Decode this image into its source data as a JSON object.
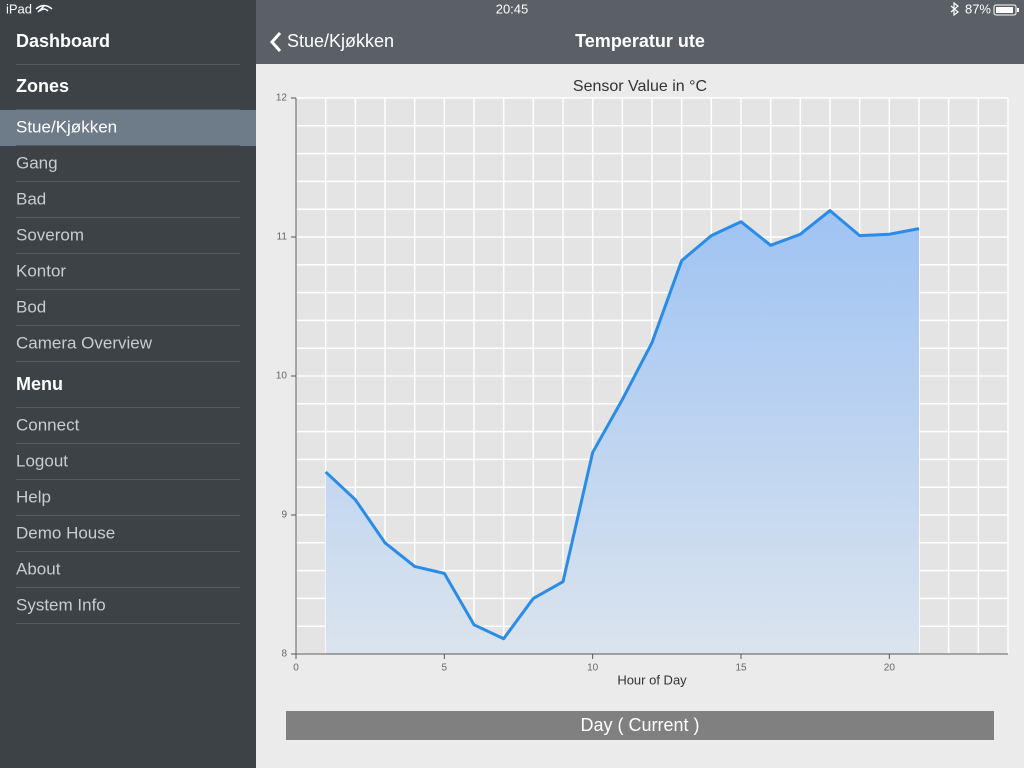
{
  "status_bar": {
    "device": "iPad",
    "time": "20:45",
    "battery": "87%"
  },
  "nav_bar": {
    "back": "Stue/Kjøkken",
    "title": "Temperatur ute"
  },
  "sidebar": {
    "top": "Dashboard",
    "sections": [
      {
        "title": "Zones",
        "selected": 0,
        "items": [
          "Stue/Kjøkken",
          "Gang",
          "Bad",
          "Soverom",
          "Kontor",
          "Bod",
          "Camera Overview"
        ]
      },
      {
        "title": "Menu",
        "items": [
          "Connect",
          "Logout",
          "Help",
          "Demo House",
          "About",
          "System Info"
        ]
      }
    ]
  },
  "chart_data": {
    "type": "area",
    "title": "Sensor Value in °C",
    "xlabel": "Hour of Day",
    "x": [
      1,
      2,
      3,
      4,
      5,
      6,
      7,
      8,
      9,
      10,
      11,
      12,
      13,
      14,
      15,
      16,
      17,
      18,
      19,
      20,
      21
    ],
    "values": [
      9.31,
      9.11,
      8.8,
      8.63,
      8.58,
      8.21,
      8.11,
      8.4,
      8.52,
      9.45,
      9.83,
      10.24,
      10.83,
      11.01,
      11.11,
      10.94,
      11.02,
      11.19,
      11.01,
      11.02,
      11.06
    ],
    "color": "#2a8ce6",
    "xlim": [
      0,
      24
    ],
    "ylim": [
      8,
      12
    ],
    "xticks": [
      0,
      5,
      10,
      15,
      20
    ],
    "yticks": [
      8,
      9,
      10,
      11,
      12
    ],
    "xgrid": [
      0,
      1,
      2,
      3,
      4,
      5,
      6,
      7,
      8,
      9,
      10,
      11,
      12,
      13,
      14,
      15,
      16,
      17,
      18,
      19,
      20,
      21,
      22,
      23,
      24
    ],
    "ygrid": [
      8,
      8.2,
      8.4,
      8.6,
      8.8,
      9,
      9.2,
      9.4,
      9.6,
      9.8,
      10,
      10.2,
      10.4,
      10.6,
      10.8,
      11,
      11.2,
      11.4,
      11.6,
      11.8,
      12
    ],
    "grid": true
  },
  "button": "Day ( Current )"
}
